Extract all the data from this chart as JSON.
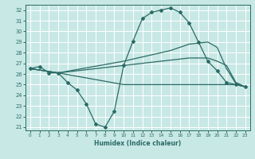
{
  "xlabel": "Humidex (Indice chaleur)",
  "xlim": [
    -0.5,
    23.5
  ],
  "ylim": [
    20.7,
    32.5
  ],
  "yticks": [
    21,
    22,
    23,
    24,
    25,
    26,
    27,
    28,
    29,
    30,
    31,
    32
  ],
  "xticks": [
    0,
    1,
    2,
    3,
    4,
    5,
    6,
    7,
    8,
    9,
    10,
    11,
    12,
    13,
    14,
    15,
    16,
    17,
    18,
    19,
    20,
    21,
    22,
    23
  ],
  "bg_color": "#c8e8e5",
  "line_color": "#2b6b66",
  "grid_color": "#ffffff",
  "line1_x": [
    0,
    1,
    2,
    3,
    4,
    5,
    6,
    7,
    8,
    9,
    10,
    11,
    12,
    13,
    14,
    15,
    16,
    17,
    18,
    19,
    20,
    21,
    22,
    23
  ],
  "line1_y": [
    26.5,
    26.7,
    26.1,
    26.1,
    25.2,
    24.5,
    23.2,
    21.3,
    21.0,
    22.5,
    26.8,
    29.1,
    31.2,
    31.8,
    32.0,
    32.2,
    31.8,
    30.8,
    29.0,
    27.2,
    26.3,
    25.2,
    25.0,
    24.8
  ],
  "line2_x": [
    0,
    3,
    10,
    14,
    15,
    16,
    17,
    18,
    19,
    20,
    21,
    22,
    23
  ],
  "line2_y": [
    26.5,
    26.1,
    27.2,
    28.0,
    28.2,
    28.5,
    28.8,
    28.9,
    29.0,
    28.5,
    26.5,
    25.1,
    24.8
  ],
  "line3_x": [
    0,
    3,
    10,
    11,
    12,
    13,
    14,
    15,
    16,
    17,
    18,
    19,
    20,
    21,
    22,
    23
  ],
  "line3_y": [
    26.5,
    26.1,
    25.0,
    25.0,
    25.0,
    25.0,
    25.0,
    25.0,
    25.0,
    25.0,
    25.0,
    25.0,
    25.0,
    25.0,
    25.0,
    24.8
  ],
  "line4_x": [
    0,
    3,
    10,
    14,
    17,
    18,
    19,
    20,
    21,
    22,
    23
  ],
  "line4_y": [
    26.5,
    26.1,
    26.8,
    27.2,
    27.5,
    27.5,
    27.5,
    27.2,
    26.8,
    25.2,
    24.8
  ]
}
